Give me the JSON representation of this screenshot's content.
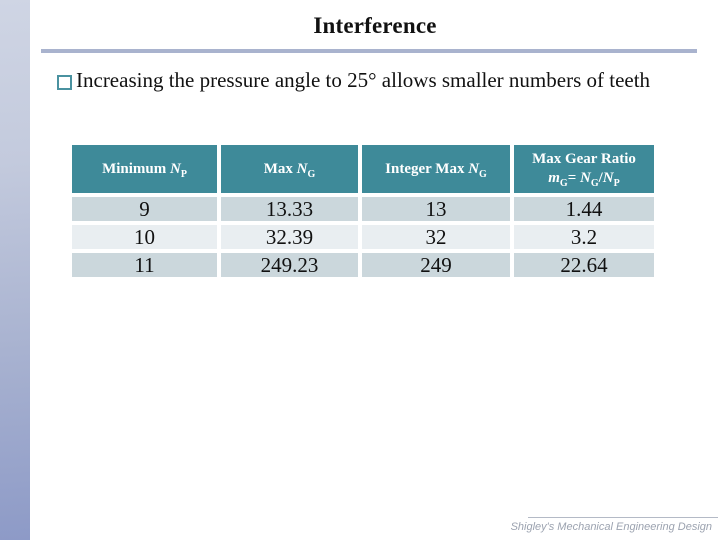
{
  "slide": {
    "title": "Interference",
    "bullet_text": "Increasing the pressure angle to 25° allows smaller numbers of teeth",
    "footer": "Shigley's Mechanical Engineering Design"
  },
  "colors": {
    "header_teal": "#3e8a99",
    "row_dark": "#cbd7dc",
    "row_light": "#e9eef1",
    "sidebar_gradient_top": "#cfd5e4",
    "sidebar_gradient_bottom": "#8d9ac7",
    "title_rule": "#a9b3ce",
    "bullet_square_border": "#4a92a0",
    "footer_gray": "#9ca3b0"
  },
  "table": {
    "headers": [
      {
        "text": "Minimum ",
        "var": "N",
        "sub": "P"
      },
      {
        "text": "Max ",
        "var": "N",
        "sub": "G"
      },
      {
        "text": "Integer Max ",
        "var": "N",
        "sub": "G"
      },
      {
        "line1": "Max Gear Ratio",
        "m": "m",
        "m_sub": "G",
        "eq": "= ",
        "n1": "N",
        "n1_sub": "G",
        "slash": "/",
        "n2": "N",
        "n2_sub": "P"
      }
    ],
    "rows": [
      [
        "9",
        "13.33",
        "13",
        "1.44"
      ],
      [
        "10",
        "32.39",
        "32",
        "3.2"
      ],
      [
        "11",
        "249.23",
        "249",
        "22.64"
      ]
    ]
  }
}
